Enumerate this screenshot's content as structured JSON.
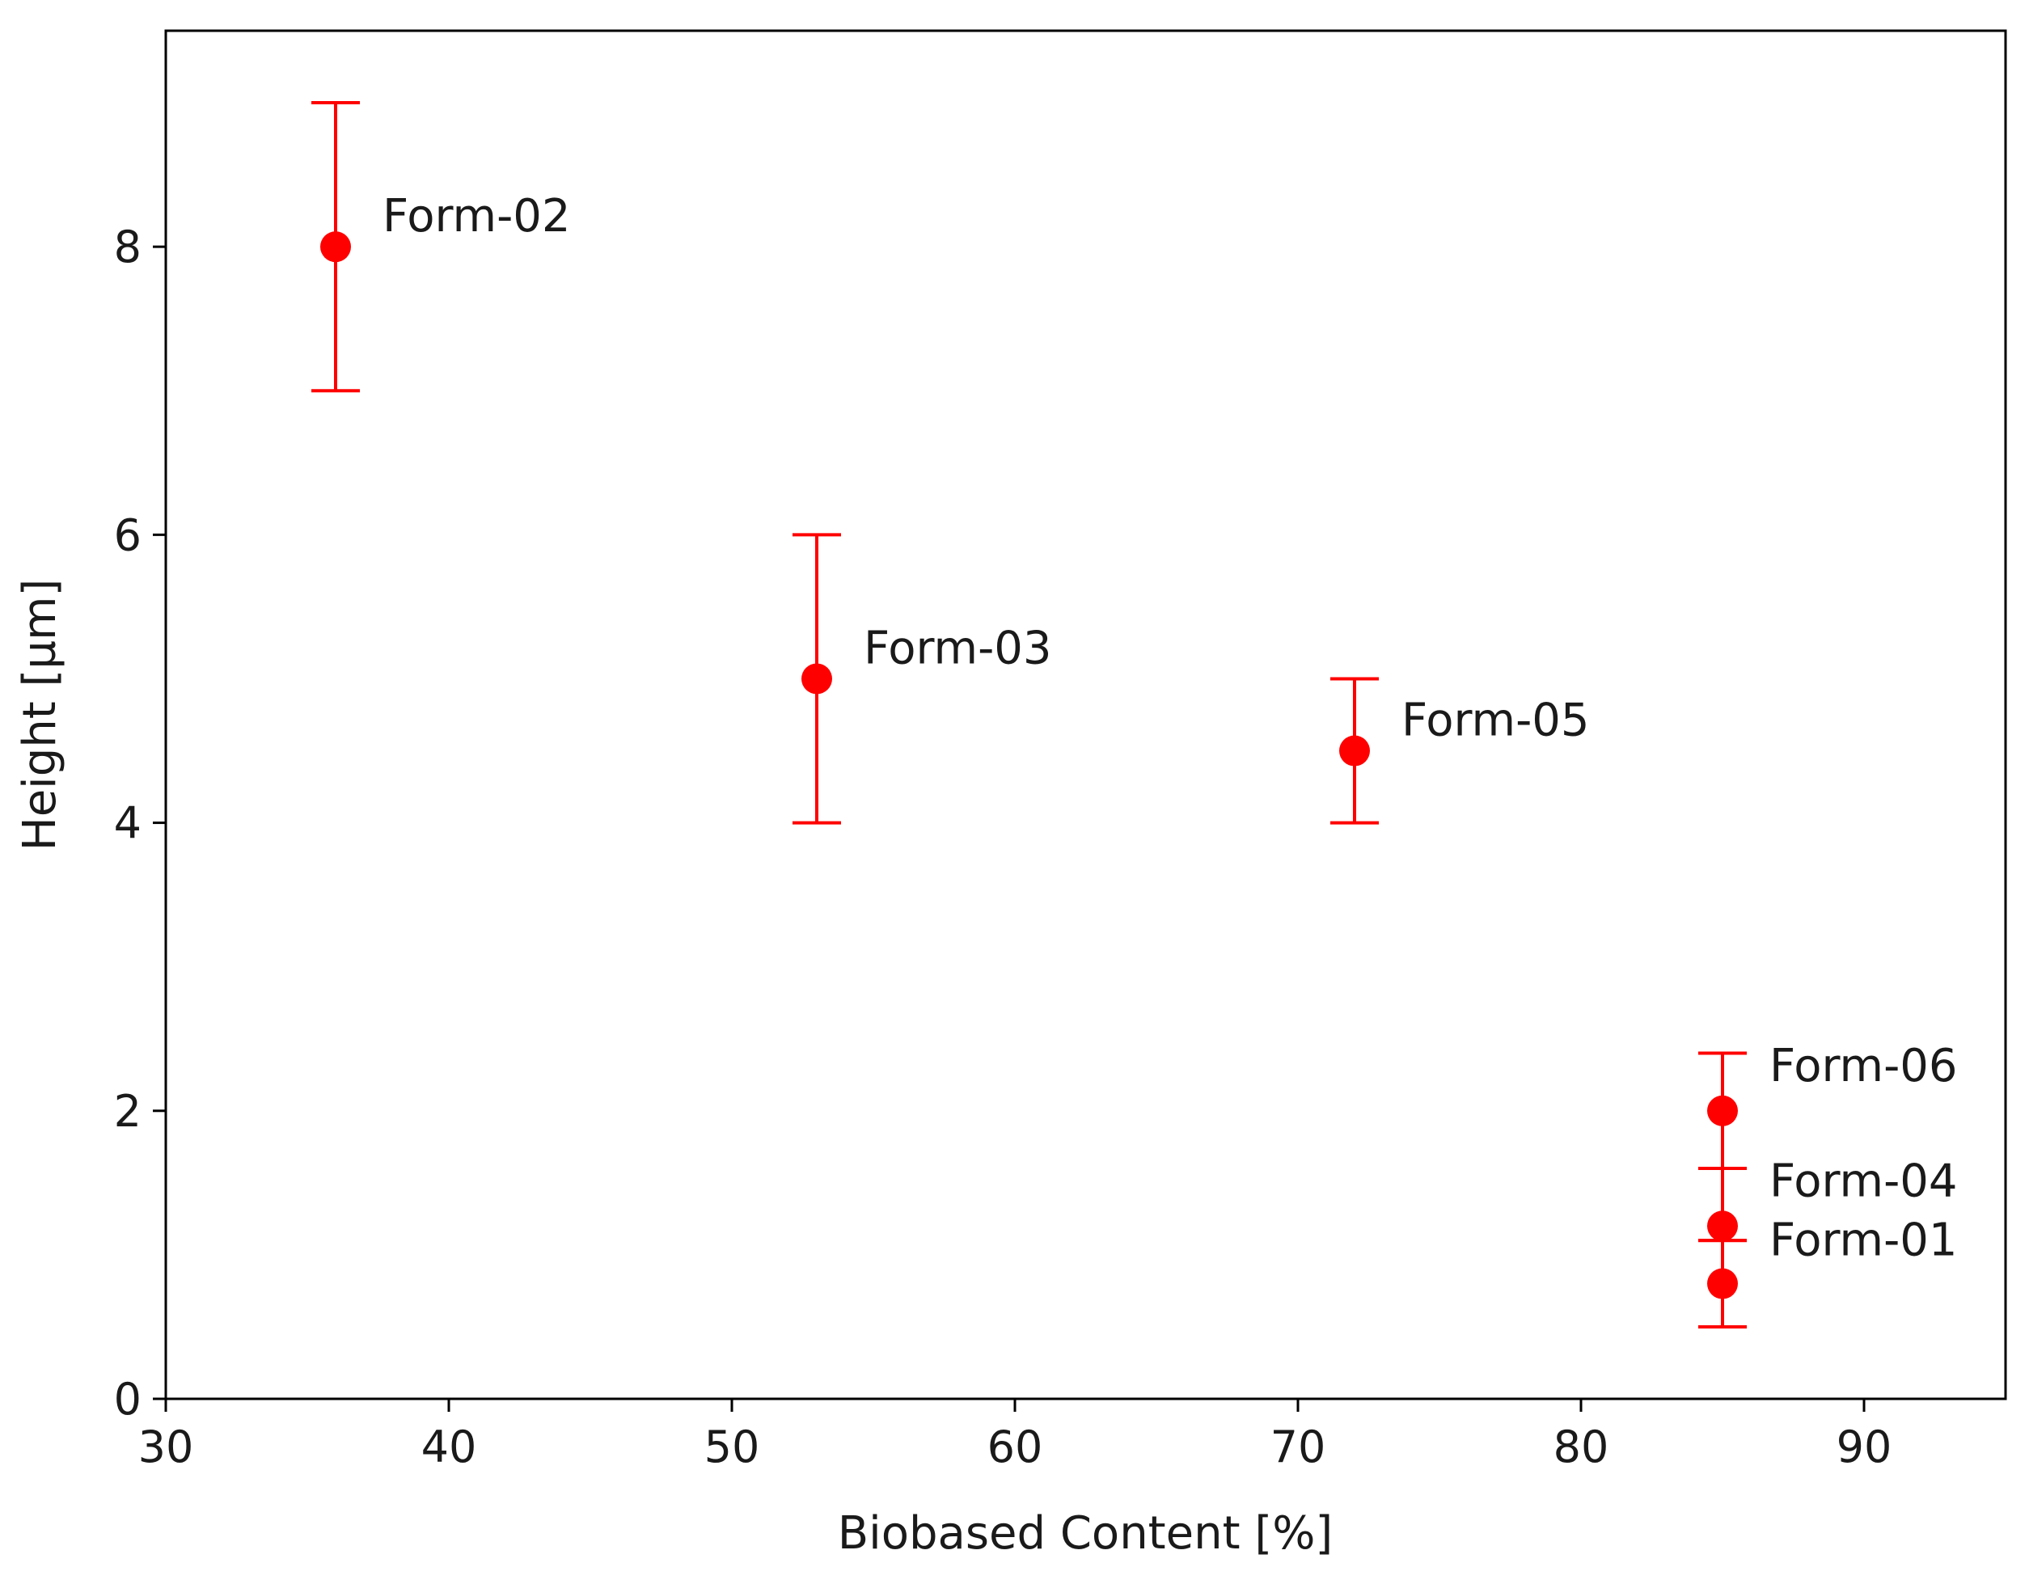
{
  "chart_data": {
    "type": "scatter",
    "title": "",
    "xlabel": "Biobased Content [%]",
    "ylabel": "Height [µm]",
    "xlim": [
      30,
      95
    ],
    "ylim": [
      0,
      9.5
    ],
    "xticks": [
      30,
      40,
      50,
      60,
      70,
      80,
      90
    ],
    "yticks": [
      0,
      2,
      4,
      6,
      8
    ],
    "grid": false,
    "legend": "none",
    "color": "#ff0000",
    "points": [
      {
        "label": "Form-01",
        "x": 85,
        "y": 0.8,
        "err_low": 0.3,
        "err_high": 0.3
      },
      {
        "label": "Form-02",
        "x": 36,
        "y": 8.0,
        "err_low": 1.0,
        "err_high": 1.0
      },
      {
        "label": "Form-03",
        "x": 53,
        "y": 5.0,
        "err_low": 1.0,
        "err_high": 1.0
      },
      {
        "label": "Form-04",
        "x": 85,
        "y": 1.2,
        "err_low": 0.1,
        "err_high": 0.4
      },
      {
        "label": "Form-05",
        "x": 72,
        "y": 4.5,
        "err_low": 0.5,
        "err_high": 0.5
      },
      {
        "label": "Form-06",
        "x": 85,
        "y": 2.0,
        "err_low": 0.4,
        "err_high": 0.4
      }
    ]
  }
}
